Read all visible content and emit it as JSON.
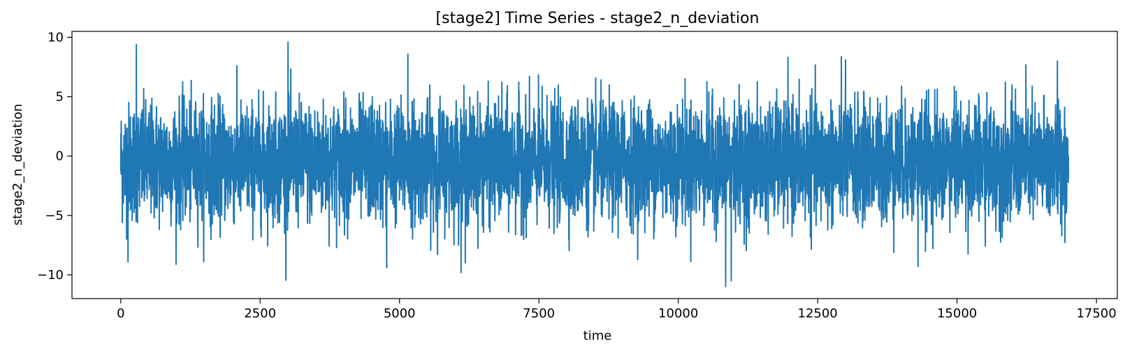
{
  "chart_data": {
    "type": "line",
    "title": "[stage2] Time Series - stage2_n_deviation",
    "xlabel": "time",
    "ylabel": "stage2_n_deviation",
    "xlim": [
      -875,
      17875
    ],
    "ylim": [
      -12,
      10.5
    ],
    "x_ticks": [
      0,
      2500,
      5000,
      7500,
      10000,
      12500,
      15000,
      17500
    ],
    "x_tick_labels": [
      "0",
      "2500",
      "5000",
      "7500",
      "10000",
      "12500",
      "15000",
      "17500"
    ],
    "y_ticks": [
      -10,
      -5,
      0,
      5,
      10
    ],
    "y_tick_labels": [
      "−10",
      "−5",
      "0",
      "5",
      "10"
    ],
    "grid": false,
    "legend": "none",
    "series": [
      {
        "color": "#1f77b4",
        "x_start": 0,
        "x_end": 17000,
        "n_points": 17001,
        "typical_range": [
          -5,
          4
        ],
        "peaks": [
          {
            "x": 280,
            "y": 9.4
          },
          {
            "x": 3000,
            "y": 9.6
          },
          {
            "x": 5150,
            "y": 8.6
          },
          {
            "x": 13000,
            "y": 8.1
          },
          {
            "x": 16800,
            "y": 8.0
          },
          {
            "x": 10850,
            "y": -11.0
          },
          {
            "x": 10950,
            "y": -10.5
          },
          {
            "x": 4770,
            "y": -9.4
          },
          {
            "x": 14300,
            "y": -9.3
          },
          {
            "x": 130,
            "y": -8.9
          },
          {
            "x": 6180,
            "y": -9.0
          }
        ]
      }
    ]
  }
}
